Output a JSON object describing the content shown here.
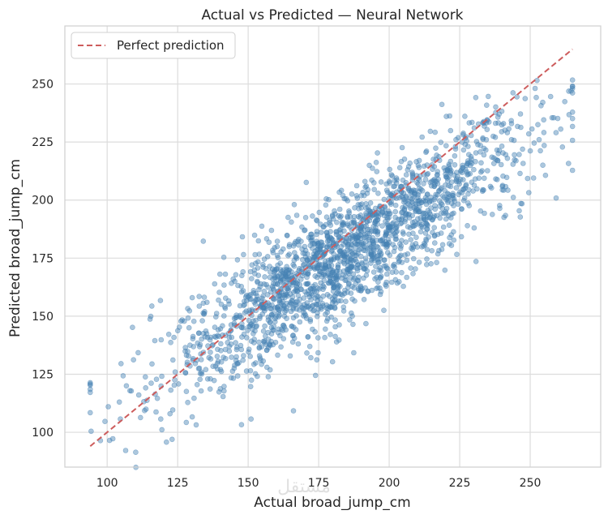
{
  "chart_data": {
    "type": "scatter",
    "title": "Actual vs Predicted — Neural Network",
    "xlabel": "Actual broad_jump_cm",
    "ylabel": "Predicted broad_jump_cm",
    "xlim": [
      85,
      275
    ],
    "ylim": [
      85,
      275
    ],
    "xticks": [
      100,
      125,
      150,
      175,
      200,
      225,
      250
    ],
    "yticks": [
      100,
      125,
      150,
      175,
      200,
      225,
      250
    ],
    "grid": true,
    "legend": {
      "placement": "top-left",
      "entries": [
        "Perfect prediction"
      ]
    },
    "series": [
      {
        "kind": "scatter",
        "color": "#4682b4",
        "alpha": 0.45,
        "x_range": [
          94,
          265
        ],
        "n_points": 2000,
        "note_x_floor": 94,
        "note_x_ceiling": 265
      },
      {
        "kind": "reference-line",
        "name": "Perfect prediction",
        "color": "#cd5c5c",
        "style": "dashed",
        "points": [
          [
            94,
            94
          ],
          [
            265,
            265
          ]
        ]
      }
    ],
    "points": {
      "trend_slope": 0.78,
      "trend_intercept": 32,
      "noise_sd": 13
    }
  },
  "watermark": "مستقل"
}
